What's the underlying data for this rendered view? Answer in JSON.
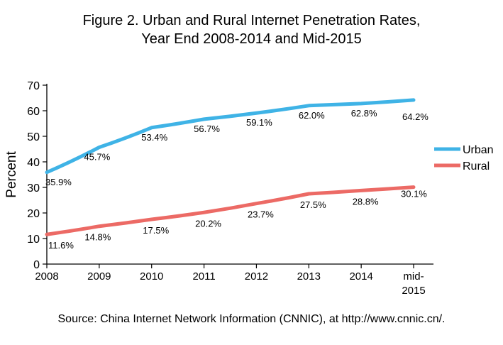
{
  "title": {
    "line1": "Figure 2. Urban and Rural Internet Penetration Rates,",
    "line2": "Year End 2008-2014 and Mid-2015"
  },
  "source": "Source: China Internet Network Information (CNNIC), at http://www.cnnic.cn/.",
  "colors": {
    "urban": "#3fb3e6",
    "rural": "#ec6a65",
    "axis": "#000000"
  },
  "chart_data": {
    "type": "line",
    "ylabel": "Percent",
    "xlabel": "",
    "ylim": [
      0,
      70
    ],
    "yticks": [
      "0",
      "10",
      "20",
      "30",
      "40",
      "50",
      "60",
      "70"
    ],
    "categories": [
      "2008",
      "2009",
      "2010",
      "2011",
      "2012",
      "2013",
      "2014",
      "mid-2015"
    ],
    "x_tick_labels": [
      [
        "2008"
      ],
      [
        "2009"
      ],
      [
        "2010"
      ],
      [
        "2011"
      ],
      [
        "2012"
      ],
      [
        "2013"
      ],
      [
        "2014"
      ],
      [
        "mid-",
        "2015"
      ]
    ],
    "grid": false,
    "legend_position": "right",
    "series": [
      {
        "name": "Urban",
        "values": [
          35.9,
          45.7,
          53.4,
          56.7,
          59.1,
          62.0,
          62.8,
          64.2
        ],
        "labels": [
          "35.9%",
          "45.7%",
          "53.4%",
          "56.7%",
          "59.1%",
          "62.0%",
          "62.8%",
          "64.2%"
        ]
      },
      {
        "name": "Rural",
        "values": [
          11.6,
          14.8,
          17.5,
          20.2,
          23.7,
          27.5,
          28.8,
          30.1
        ],
        "labels": [
          "11.6%",
          "14.8%",
          "17.5%",
          "20.2%",
          "23.7%",
          "27.5%",
          "28.8%",
          "30.1%"
        ]
      }
    ]
  }
}
